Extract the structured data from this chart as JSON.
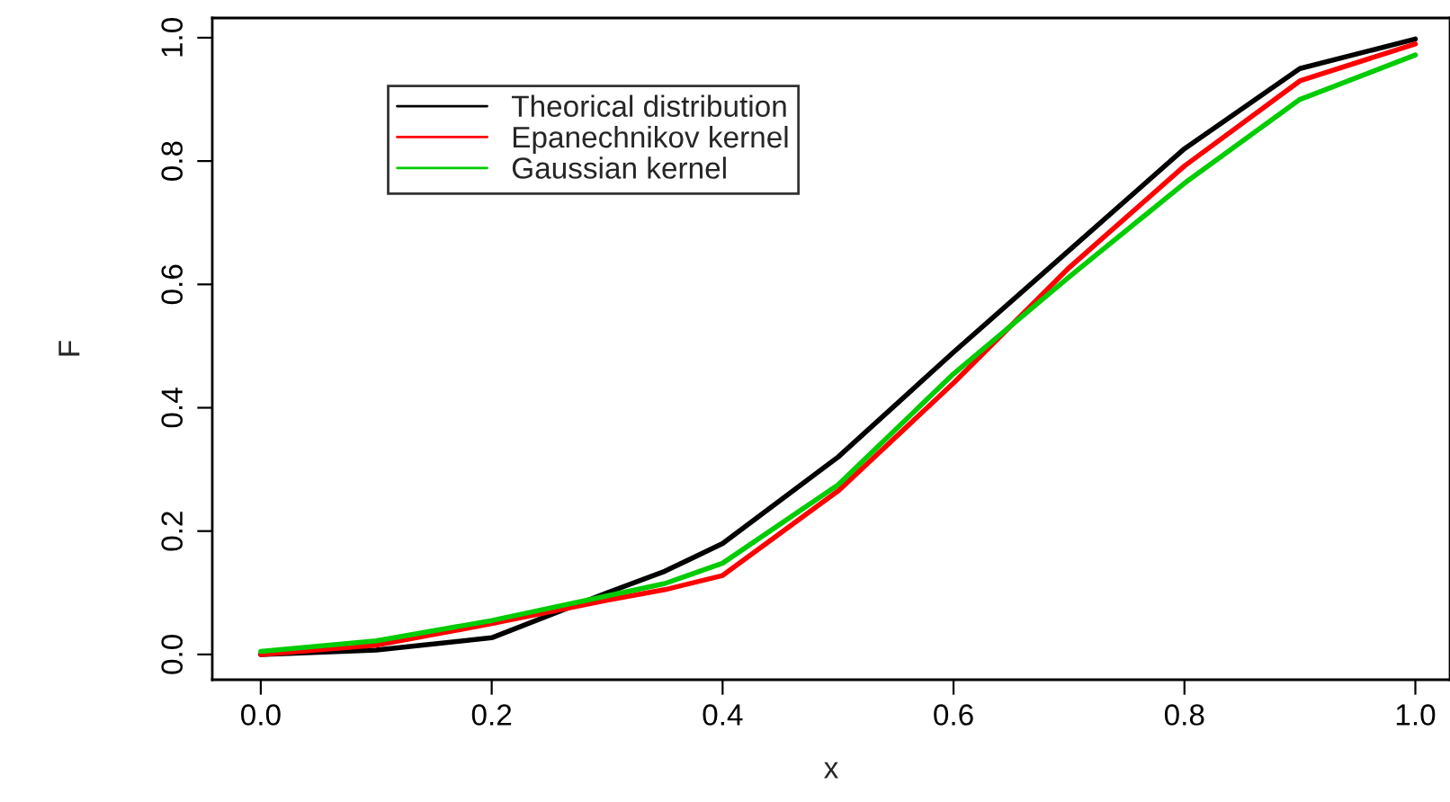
{
  "chart_data": {
    "type": "line",
    "xlabel": "x",
    "ylabel": "F",
    "x": [
      0,
      0.1,
      0.2,
      0.3,
      0.35,
      0.4,
      0.5,
      0.6,
      0.7,
      0.8,
      0.9,
      1.0
    ],
    "series": [
      {
        "name": "Theorical distribution",
        "color": "#000000",
        "values": [
          0,
          0.007,
          0.027,
          0.1,
          0.135,
          0.18,
          0.32,
          0.49,
          0.655,
          0.82,
          0.95,
          0.998
        ]
      },
      {
        "name": "Epanechnikov kernel",
        "color": "#ff0000",
        "values": [
          0,
          0.015,
          0.05,
          0.088,
          0.105,
          0.128,
          0.265,
          0.44,
          0.627,
          0.792,
          0.93,
          0.99
        ]
      },
      {
        "name": "Gaussian kernel",
        "color": "#00cc00",
        "values": [
          0.005,
          0.022,
          0.055,
          0.095,
          0.115,
          0.148,
          0.275,
          0.455,
          0.612,
          0.764,
          0.9,
          0.972
        ]
      }
    ],
    "xlim": [
      -0.042,
      1.03
    ],
    "ylim": [
      -0.041,
      1.032
    ],
    "xticks": [
      {
        "value": 0,
        "label": "0.0"
      },
      0.2,
      0.4,
      0.6,
      0.8,
      {
        "value": 1,
        "label": "1.0"
      }
    ],
    "yticks": [
      {
        "value": 0,
        "label": "0.0"
      },
      0.2,
      0.4,
      0.6,
      0.8,
      {
        "value": 1,
        "label": "1.0"
      }
    ],
    "grid": false,
    "legend": "top left",
    "line_style": "solid",
    "marker": "none"
  }
}
